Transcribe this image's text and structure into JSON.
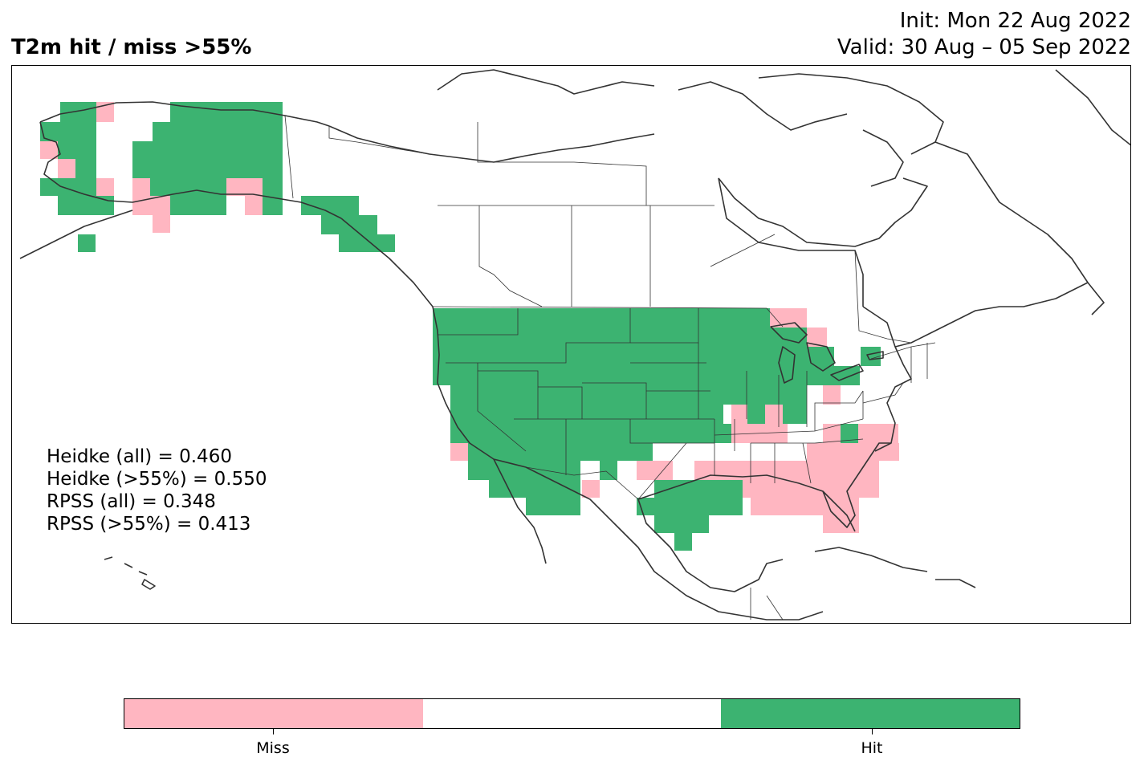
{
  "header": {
    "title": "T2m hit / miss  >55%",
    "init": "Init: Mon 22 Aug 2022",
    "valid": "Valid: 30 Aug – 05 Sep 2022"
  },
  "stats": [
    "Heidke (all) = 0.460",
    "Heidke (>55%) = 0.550",
    "RPSS (all) = 0.348",
    "RPSS (>55%) = 0.413"
  ],
  "legend": {
    "colors": [
      "#ffb6c1",
      "#ffffff",
      "#3cb371"
    ],
    "miss_label": "Miss",
    "hit_label": "Hit"
  },
  "map": {
    "hit_color": "#3cb371",
    "miss_color": "#ffb6c1",
    "coast_color": "#333333"
  }
}
